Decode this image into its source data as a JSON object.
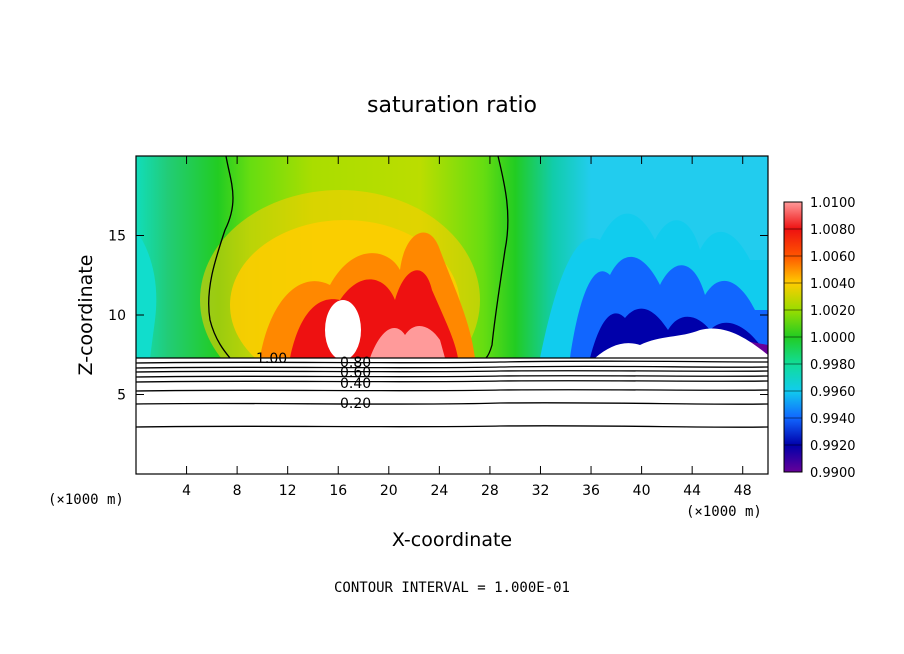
{
  "chart_data": {
    "type": "heatmap",
    "title": "saturation ratio",
    "xlabel": "X-coordinate",
    "ylabel": "Z-coordinate",
    "x_unit_left": "(×1000 m)",
    "x_unit_right": "(×1000 m)",
    "xlim": [
      0,
      50
    ],
    "ylim": [
      0,
      20
    ],
    "x_ticks": [
      4,
      8,
      12,
      16,
      20,
      24,
      28,
      32,
      36,
      40,
      44,
      48
    ],
    "y_ticks": [
      5,
      10,
      15
    ],
    "colorbar": {
      "labels": [
        "1.0100",
        "1.0080",
        "1.0060",
        "1.0040",
        "1.0020",
        "1.0000",
        "0.9980",
        "0.9960",
        "0.9940",
        "0.9920",
        "0.9900"
      ],
      "values": [
        1.01,
        1.008,
        1.006,
        1.004,
        1.002,
        1.0,
        0.998,
        0.996,
        0.994,
        0.992,
        0.99
      ],
      "colors": [
        "#ff9a9a",
        "#ee1111",
        "#ff8800",
        "#ffcc00",
        "#88dd00",
        "#22cc22",
        "#11ddaa",
        "#11bbee",
        "#1166ff",
        "#0000aa",
        "#660099"
      ],
      "tick_labels_shown": [
        "1.0100",
        "1.0080",
        "1.0060",
        "1.0040",
        "1.0020",
        "1.0000",
        "0.9980",
        "0.9960",
        "0.9940",
        "0.9920",
        "0.9900"
      ]
    },
    "contour_labels": [
      "1.00",
      "0.80",
      "0.60",
      "0.40",
      "0.20"
    ],
    "contour_levels": [
      1.0,
      0.8,
      0.6,
      0.4,
      0.2
    ],
    "contour_note": "CONTOUR INTERVAL = 1.000E-01",
    "grid": false
  }
}
